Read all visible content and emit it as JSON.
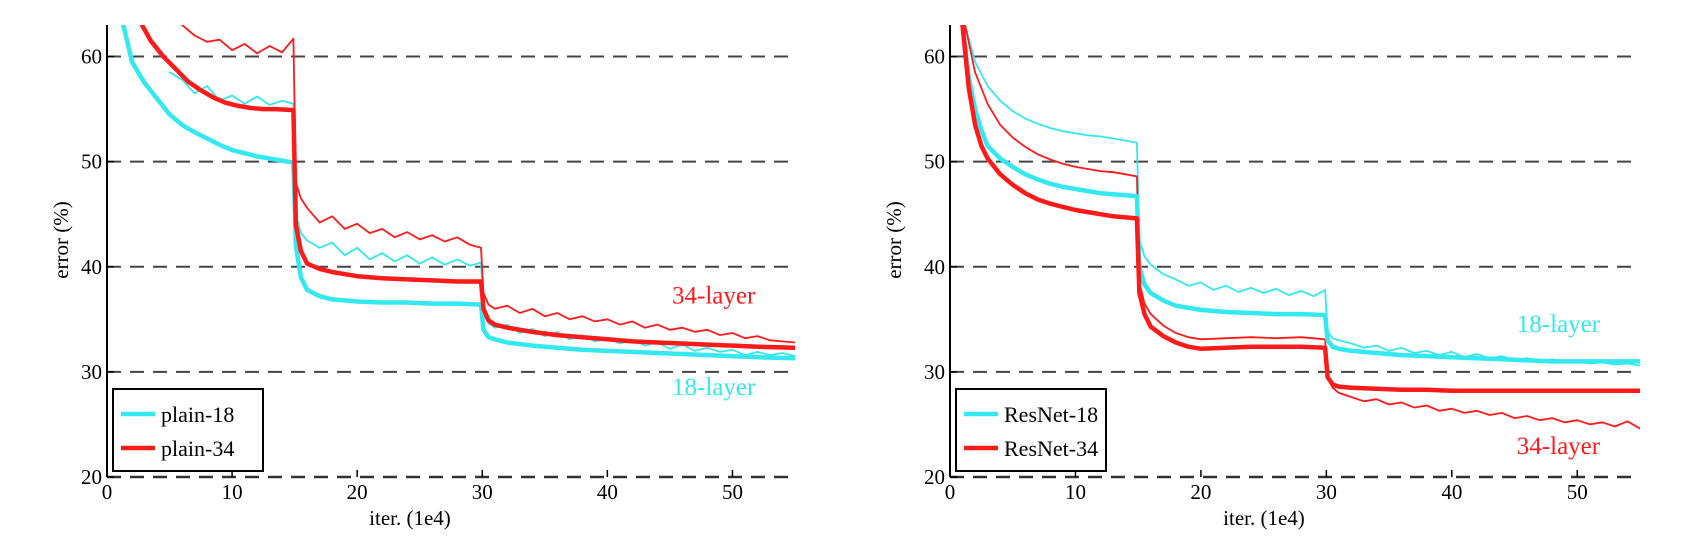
{
  "chart_data": [
    {
      "type": "line",
      "title": "",
      "xlabel": "iter. (1e4)",
      "ylabel": "error (%)",
      "xlim": [
        0,
        55
      ],
      "ylim": [
        20,
        63
      ],
      "xticks": [
        0,
        10,
        20,
        30,
        40,
        50
      ],
      "yticks": [
        20,
        30,
        40,
        50,
        60
      ],
      "grid": "dashed horizontal",
      "legend": {
        "placement": "bottom-left"
      },
      "annotations": [
        {
          "text": "34-layer",
          "x": 48.5,
          "y": 36.5,
          "color": "#ff1a1a"
        },
        {
          "text": "18-layer",
          "x": 48.5,
          "y": 27.8,
          "color": "#33e8ee"
        }
      ],
      "series": [
        {
          "name": "plain-18",
          "style": "thick",
          "color": "#33e8ee",
          "x": [
            1.3,
            2,
            3,
            4,
            5,
            6,
            7,
            8,
            9,
            10,
            11,
            12,
            13,
            14,
            14.9,
            15.1,
            15.5,
            16,
            17,
            18,
            20,
            22,
            24,
            26,
            28,
            29.9,
            30.1,
            30.5,
            31,
            32,
            34,
            36,
            38,
            40,
            42,
            44,
            46,
            48,
            50,
            52,
            55
          ],
          "y": [
            63,
            59.5,
            57.5,
            56,
            54.5,
            53.5,
            52.8,
            52.2,
            51.6,
            51.1,
            50.8,
            50.5,
            50.3,
            50.1,
            49.9,
            42,
            39,
            37.8,
            37.2,
            36.9,
            36.7,
            36.6,
            36.6,
            36.5,
            36.5,
            36.4,
            34,
            33.3,
            33.1,
            32.8,
            32.5,
            32.3,
            32.1,
            32,
            31.9,
            31.8,
            31.7,
            31.6,
            31.5,
            31.4,
            31.3
          ]
        },
        {
          "name": "plain-34",
          "style": "thick",
          "color": "#ff1a1a",
          "x": [
            2.8,
            3.5,
            4.5,
            5.5,
            6.5,
            7.5,
            8.5,
            9.5,
            10.5,
            11.5,
            12.5,
            13.5,
            14.9,
            15.1,
            15.5,
            16,
            17,
            18,
            20,
            22,
            24,
            26,
            28,
            29.9,
            30.1,
            30.5,
            31,
            32,
            34,
            36,
            38,
            40,
            42,
            44,
            46,
            48,
            50,
            52,
            55
          ],
          "y": [
            63,
            61.5,
            60,
            58.8,
            57.6,
            56.8,
            56.1,
            55.6,
            55.3,
            55.1,
            55,
            55,
            54.9,
            44,
            41.5,
            40.3,
            39.8,
            39.5,
            39.1,
            38.9,
            38.8,
            38.7,
            38.6,
            38.6,
            36,
            34.9,
            34.5,
            34.2,
            33.8,
            33.5,
            33.3,
            33.1,
            32.9,
            32.8,
            32.7,
            32.6,
            32.5,
            32.4,
            32.3
          ]
        },
        {
          "name": "",
          "style": "thin",
          "color": "#33e8ee",
          "x": [
            5,
            6,
            7,
            8,
            9,
            10,
            11,
            12,
            13,
            14,
            14.9,
            15.1,
            15.5,
            16,
            17,
            18,
            19,
            20,
            21,
            22,
            23,
            24,
            25,
            26,
            27,
            28,
            29,
            29.9,
            30.1,
            30.5,
            31,
            32,
            33,
            34,
            35,
            36,
            37,
            38,
            39,
            40,
            41,
            42,
            43,
            44,
            45,
            46,
            47,
            48,
            49,
            50,
            51,
            52,
            53,
            54,
            55
          ],
          "y": [
            58.5,
            57.8,
            56.5,
            57.2,
            55.8,
            56.3,
            55.5,
            56.2,
            55.4,
            55.8,
            55.5,
            45,
            43.2,
            42.5,
            41.8,
            42.3,
            41.1,
            41.8,
            40.7,
            41.3,
            40.5,
            41.1,
            40.3,
            40.9,
            40.2,
            40.7,
            40.1,
            40.4,
            35.5,
            34.6,
            34.2,
            34.5,
            33.7,
            34.1,
            33.4,
            33.8,
            33.1,
            33.5,
            32.9,
            33.2,
            32.7,
            33,
            32.5,
            32.8,
            32.2,
            32.6,
            32,
            32.3,
            31.9,
            32.1,
            31.6,
            31.9,
            31.6,
            31.8,
            31.5
          ]
        },
        {
          "name": "",
          "style": "thin",
          "color": "#ff1a1a",
          "x": [
            6,
            7,
            8,
            9,
            10,
            11,
            12,
            13,
            14,
            14.9,
            15.1,
            15.5,
            16,
            17,
            18,
            19,
            20,
            21,
            22,
            23,
            24,
            25,
            26,
            27,
            28,
            29,
            29.9,
            30.1,
            30.5,
            31,
            32,
            33,
            34,
            35,
            36,
            37,
            38,
            39,
            40,
            41,
            42,
            43,
            44,
            45,
            46,
            47,
            48,
            49,
            50,
            51,
            52,
            53,
            54,
            55
          ],
          "y": [
            63,
            62,
            61.4,
            61.6,
            60.6,
            61.2,
            60.3,
            61,
            60.4,
            61.7,
            48,
            46.5,
            45.6,
            44.2,
            44.8,
            43.6,
            44.1,
            43.2,
            43.6,
            42.8,
            43.3,
            42.6,
            43,
            42.4,
            42.8,
            42.1,
            41.8,
            37.5,
            36.4,
            36,
            36.3,
            35.6,
            36,
            35.3,
            35.6,
            35,
            35.3,
            34.8,
            35,
            34.5,
            34.8,
            34.2,
            34.5,
            34,
            34.2,
            33.8,
            34,
            33.5,
            33.7,
            33.2,
            33.4,
            33,
            32.9,
            32.8
          ]
        }
      ]
    },
    {
      "type": "line",
      "title": "",
      "xlabel": "iter. (1e4)",
      "ylabel": "error (%)",
      "xlim": [
        0,
        55
      ],
      "ylim": [
        20,
        63
      ],
      "xticks": [
        0,
        10,
        20,
        30,
        40,
        50
      ],
      "yticks": [
        20,
        30,
        40,
        50,
        60
      ],
      "grid": "dashed horizontal",
      "legend": {
        "placement": "bottom-left"
      },
      "annotations": [
        {
          "text": "18-layer",
          "x": 48.5,
          "y": 33.8,
          "color": "#33e8ee"
        },
        {
          "text": "34-layer",
          "x": 48.5,
          "y": 22.2,
          "color": "#ff1a1a"
        }
      ],
      "series": [
        {
          "name": "ResNet-18",
          "style": "thick",
          "color": "#33e8ee",
          "x": [
            1,
            1.5,
            2,
            2.5,
            3,
            4,
            5,
            6,
            7,
            8,
            9,
            10,
            11,
            12,
            13,
            14,
            14.9,
            15.1,
            15.5,
            16,
            17,
            18,
            20,
            22,
            24,
            26,
            28,
            29.9,
            30.1,
            30.5,
            31,
            32,
            34,
            36,
            38,
            40,
            42,
            44,
            46,
            48,
            50,
            52,
            55
          ],
          "y": [
            63,
            58,
            55,
            53,
            51.5,
            50.3,
            49.5,
            48.8,
            48.3,
            47.9,
            47.6,
            47.4,
            47.2,
            47,
            46.9,
            46.8,
            46.7,
            40,
            38.3,
            37.5,
            36.8,
            36.3,
            35.9,
            35.7,
            35.6,
            35.5,
            35.5,
            35.4,
            33,
            32.4,
            32.2,
            32,
            31.8,
            31.6,
            31.5,
            31.4,
            31.3,
            31.2,
            31.1,
            31,
            31,
            31,
            31
          ]
        },
        {
          "name": "ResNet-34",
          "style": "thick",
          "color": "#ff1a1a",
          "x": [
            1,
            1.5,
            2,
            2.5,
            3,
            4,
            5,
            6,
            7,
            8,
            9,
            10,
            11,
            12,
            13,
            14,
            14.9,
            15.1,
            15.5,
            16,
            17,
            18,
            19,
            20,
            22,
            24,
            26,
            28,
            29.9,
            30.1,
            30.5,
            31,
            32,
            34,
            36,
            38,
            40,
            42,
            44,
            46,
            48,
            50,
            52,
            55
          ],
          "y": [
            63,
            57,
            53.5,
            51.5,
            50.3,
            48.8,
            47.8,
            47,
            46.4,
            46,
            45.7,
            45.4,
            45.2,
            45,
            44.8,
            44.7,
            44.6,
            37.5,
            35.5,
            34.3,
            33.4,
            32.8,
            32.4,
            32.2,
            32.3,
            32.4,
            32.4,
            32.4,
            32.3,
            29.5,
            28.8,
            28.6,
            28.5,
            28.4,
            28.3,
            28.3,
            28.2,
            28.2,
            28.2,
            28.2,
            28.2,
            28.2,
            28.2,
            28.2
          ]
        },
        {
          "name": "",
          "style": "thin",
          "color": "#33e8ee",
          "x": [
            1.2,
            2,
            3,
            4,
            5,
            6,
            7,
            8,
            9,
            10,
            11,
            12,
            13,
            14,
            14.9,
            15.1,
            15.5,
            16,
            17,
            18,
            19,
            20,
            21,
            22,
            23,
            24,
            25,
            26,
            27,
            28,
            29,
            29.9,
            30.1,
            30.5,
            31,
            32,
            33,
            34,
            35,
            36,
            37,
            38,
            39,
            40,
            41,
            42,
            43,
            44,
            45,
            46,
            47,
            48,
            49,
            50,
            51,
            52,
            53,
            54,
            55
          ],
          "y": [
            63,
            59.5,
            57.2,
            55.8,
            54.8,
            54.1,
            53.6,
            53.2,
            52.9,
            52.7,
            52.5,
            52.4,
            52.2,
            52,
            51.8,
            42.5,
            41,
            40.2,
            39.3,
            38.8,
            38.2,
            38.5,
            37.8,
            38.2,
            37.6,
            38,
            37.5,
            37.9,
            37.3,
            37.7,
            37.2,
            37.8,
            33.8,
            33.2,
            33,
            32.7,
            32.3,
            32.5,
            32,
            32.3,
            31.8,
            32,
            31.6,
            31.9,
            31.4,
            31.7,
            31.3,
            31.5,
            31.1,
            31.3,
            31,
            31.2,
            30.9,
            31,
            30.8,
            30.9,
            30.7,
            30.8,
            30.6
          ]
        },
        {
          "name": "",
          "style": "thin",
          "color": "#ff1a1a",
          "x": [
            1.2,
            2,
            3,
            4,
            5,
            6,
            7,
            8,
            9,
            10,
            11,
            12,
            13,
            14,
            14.9,
            15.1,
            15.5,
            16,
            17,
            18,
            19,
            20,
            22,
            24,
            26,
            28,
            29.9,
            30.1,
            30.5,
            31,
            32,
            33,
            34,
            35,
            36,
            37,
            38,
            39,
            40,
            41,
            42,
            43,
            44,
            45,
            46,
            47,
            48,
            49,
            50,
            51,
            52,
            53,
            54,
            55
          ],
          "y": [
            63,
            58.5,
            55.5,
            53.5,
            52.3,
            51.4,
            50.7,
            50.2,
            49.8,
            49.5,
            49.3,
            49.1,
            49,
            48.8,
            48.6,
            38.5,
            36.5,
            35.5,
            34.4,
            33.7,
            33.3,
            33.1,
            33.2,
            33.3,
            33.2,
            33.3,
            33.1,
            29.5,
            28.5,
            28,
            27.6,
            27.2,
            27.4,
            26.9,
            27.1,
            26.6,
            26.8,
            26.3,
            26.5,
            26.1,
            26.3,
            25.9,
            26.1,
            25.6,
            25.8,
            25.4,
            25.6,
            25.2,
            25.4,
            25,
            25.2,
            24.8,
            25.3,
            24.6
          ]
        }
      ]
    }
  ]
}
